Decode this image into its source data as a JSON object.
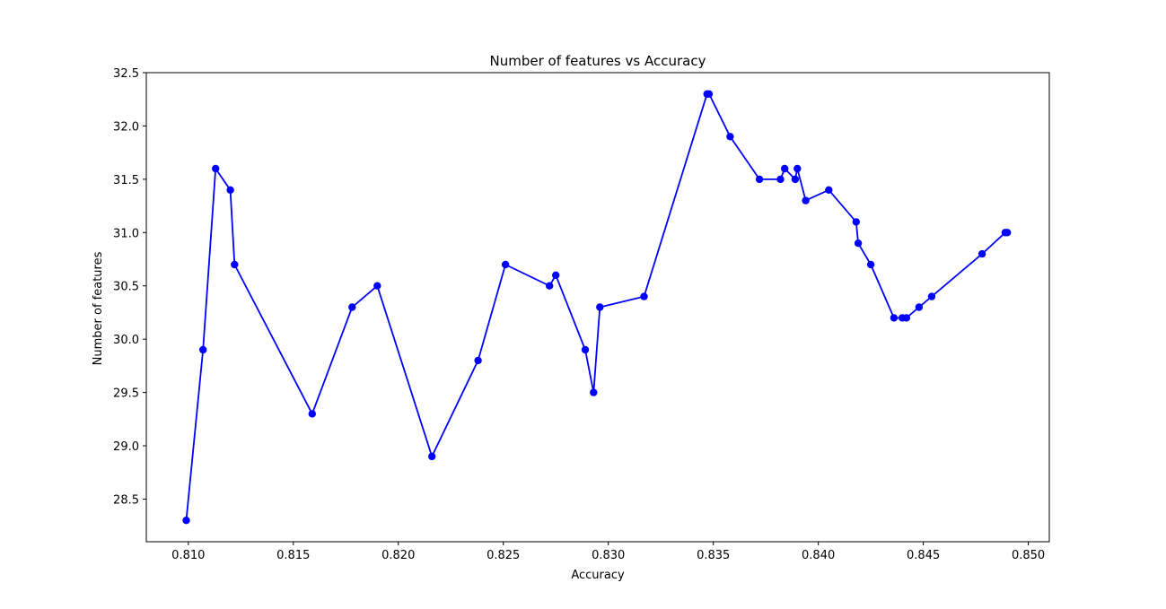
{
  "chart_data": {
    "type": "line",
    "title": "Number of features vs Accuracy",
    "xlabel": "Accuracy",
    "ylabel": "Number of features",
    "xlim": [
      0.808,
      0.851
    ],
    "ylim": [
      28.1,
      32.5
    ],
    "xticks": [
      "0.810",
      "0.815",
      "0.820",
      "0.825",
      "0.830",
      "0.835",
      "0.840",
      "0.845",
      "0.850"
    ],
    "yticks": [
      "28.5",
      "29.0",
      "29.5",
      "30.0",
      "30.5",
      "31.0",
      "31.5",
      "32.0",
      "32.5"
    ],
    "grid": false,
    "legend": "none",
    "series": [
      {
        "color": "#0000ff",
        "marker": "circle",
        "points": [
          [
            0.8099,
            28.3
          ],
          [
            0.8107,
            29.9
          ],
          [
            0.8113,
            31.6
          ],
          [
            0.812,
            31.4
          ],
          [
            0.8122,
            30.7
          ],
          [
            0.8159,
            29.3
          ],
          [
            0.8178,
            30.3
          ],
          [
            0.819,
            30.5
          ],
          [
            0.8216,
            28.9
          ],
          [
            0.8238,
            29.8
          ],
          [
            0.8251,
            30.7
          ],
          [
            0.8272,
            30.5
          ],
          [
            0.8275,
            30.6
          ],
          [
            0.8289,
            29.9
          ],
          [
            0.8293,
            29.5
          ],
          [
            0.8296,
            30.3
          ],
          [
            0.8317,
            30.4
          ],
          [
            0.8347,
            32.3
          ],
          [
            0.8348,
            32.3
          ],
          [
            0.8358,
            31.9
          ],
          [
            0.8372,
            31.5
          ],
          [
            0.8382,
            31.5
          ],
          [
            0.8384,
            31.6
          ],
          [
            0.8389,
            31.5
          ],
          [
            0.839,
            31.6
          ],
          [
            0.8394,
            31.3
          ],
          [
            0.8405,
            31.4
          ],
          [
            0.8418,
            31.1
          ],
          [
            0.8419,
            30.9
          ],
          [
            0.8425,
            30.7
          ],
          [
            0.8436,
            30.2
          ],
          [
            0.844,
            30.2
          ],
          [
            0.8442,
            30.2
          ],
          [
            0.8448,
            30.3
          ],
          [
            0.8454,
            30.4
          ],
          [
            0.8478,
            30.8
          ],
          [
            0.8489,
            31.0
          ],
          [
            0.849,
            31.0
          ]
        ]
      }
    ]
  }
}
